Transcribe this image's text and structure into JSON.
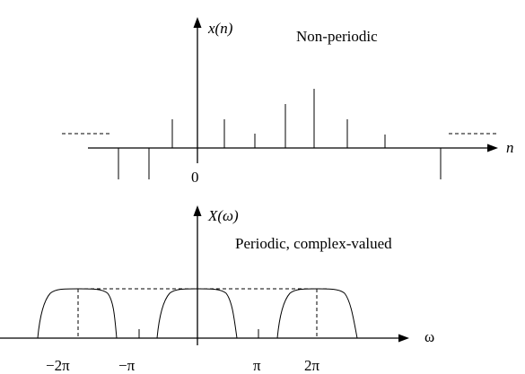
{
  "top_plot": {
    "y_label": "x(n)",
    "x_label": "n",
    "origin_label": "0",
    "note": "Non-periodic"
  },
  "bottom_plot": {
    "y_label": "X(ω)",
    "x_label": "ω",
    "note": "Periodic, complex-valued",
    "ticks": {
      "neg_two_pi": "−2π",
      "neg_pi": "−π",
      "pi": "π",
      "two_pi": "2π"
    }
  }
}
